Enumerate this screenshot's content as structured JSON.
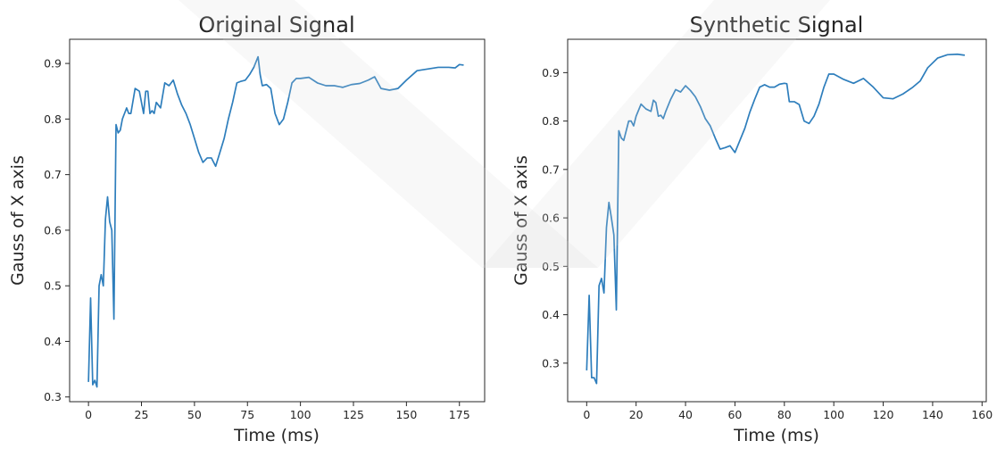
{
  "chart_data": [
    {
      "type": "line",
      "title": "Original Signal",
      "xlabel": "Time (ms)",
      "ylabel": "Gauss of X axis",
      "xlim": [
        -8.9,
        186.9
      ],
      "ylim": [
        0.2915,
        0.9435
      ],
      "xticks": [
        0,
        25,
        50,
        75,
        100,
        125,
        150,
        175
      ],
      "yticks": [
        0.3,
        0.4,
        0.5,
        0.6,
        0.7,
        0.8,
        0.9
      ],
      "grid": false,
      "line_color": "#2e7ebc",
      "series": [
        {
          "x": [
            0,
            1,
            2,
            3,
            4,
            5,
            6,
            7,
            8,
            9,
            10,
            11,
            12,
            13,
            14,
            15,
            16,
            17,
            18,
            19,
            20,
            22,
            24,
            26,
            27,
            28,
            29,
            30,
            31,
            32,
            34,
            36,
            38,
            40,
            42,
            44,
            46,
            48,
            50,
            52,
            54,
            56,
            58,
            60,
            62,
            64,
            66,
            68,
            70,
            72,
            74,
            76,
            78,
            80,
            81,
            82,
            84,
            86,
            88,
            90,
            92,
            94,
            96,
            98,
            100,
            104,
            108,
            112,
            116,
            120,
            124,
            128,
            132,
            135,
            138,
            142,
            146,
            150,
            155,
            160,
            165,
            170,
            173,
            175,
            177
          ],
          "y": [
            0.327,
            0.478,
            0.322,
            0.33,
            0.318,
            0.5,
            0.52,
            0.5,
            0.62,
            0.66,
            0.615,
            0.6,
            0.44,
            0.79,
            0.775,
            0.78,
            0.8,
            0.81,
            0.82,
            0.81,
            0.81,
            0.855,
            0.85,
            0.81,
            0.85,
            0.85,
            0.81,
            0.815,
            0.81,
            0.83,
            0.82,
            0.865,
            0.86,
            0.87,
            0.845,
            0.825,
            0.81,
            0.79,
            0.765,
            0.74,
            0.722,
            0.73,
            0.73,
            0.715,
            0.74,
            0.765,
            0.8,
            0.83,
            0.865,
            0.868,
            0.87,
            0.88,
            0.893,
            0.912,
            0.88,
            0.86,
            0.862,
            0.855,
            0.81,
            0.79,
            0.8,
            0.83,
            0.865,
            0.873,
            0.873,
            0.875,
            0.865,
            0.86,
            0.86,
            0.857,
            0.862,
            0.864,
            0.87,
            0.876,
            0.855,
            0.852,
            0.855,
            0.87,
            0.887,
            0.89,
            0.893,
            0.893,
            0.892,
            0.898,
            0.897
          ]
        }
      ]
    },
    {
      "type": "line",
      "title": "Synthetic Signal",
      "xlabel": "Time (ms)",
      "ylabel": "Gauss of X axis",
      "xlim": [
        -7.7,
        161.7
      ],
      "ylim": [
        0.2204,
        0.9689
      ],
      "xticks": [
        0,
        20,
        40,
        60,
        80,
        100,
        120,
        140,
        160
      ],
      "yticks": [
        0.3,
        0.4,
        0.5,
        0.6,
        0.7,
        0.8,
        0.9
      ],
      "grid": false,
      "line_color": "#2e7ebc",
      "series": [
        {
          "x": [
            0,
            1,
            2,
            3,
            4,
            5,
            6,
            7,
            8,
            9,
            10,
            11,
            12,
            13,
            14,
            15,
            16,
            17,
            18,
            19,
            20,
            22,
            24,
            26,
            27,
            28,
            29,
            30,
            31,
            32,
            34,
            36,
            38,
            40,
            42,
            44,
            46,
            48,
            50,
            52,
            54,
            56,
            58,
            60,
            62,
            64,
            66,
            68,
            70,
            72,
            74,
            76,
            78,
            80,
            81,
            82,
            84,
            86,
            88,
            90,
            92,
            94,
            96,
            98,
            100,
            104,
            108,
            112,
            116,
            120,
            124,
            128,
            132,
            135,
            138,
            142,
            146,
            150,
            153
          ],
          "y": [
            0.285,
            0.44,
            0.27,
            0.27,
            0.258,
            0.46,
            0.475,
            0.445,
            0.58,
            0.632,
            0.6,
            0.565,
            0.41,
            0.78,
            0.765,
            0.76,
            0.78,
            0.8,
            0.8,
            0.79,
            0.81,
            0.835,
            0.825,
            0.82,
            0.843,
            0.838,
            0.81,
            0.812,
            0.805,
            0.82,
            0.845,
            0.865,
            0.86,
            0.873,
            0.863,
            0.85,
            0.83,
            0.805,
            0.79,
            0.765,
            0.742,
            0.745,
            0.749,
            0.735,
            0.76,
            0.785,
            0.818,
            0.845,
            0.87,
            0.875,
            0.87,
            0.87,
            0.876,
            0.878,
            0.877,
            0.84,
            0.84,
            0.834,
            0.8,
            0.795,
            0.81,
            0.835,
            0.87,
            0.897,
            0.897,
            0.886,
            0.878,
            0.888,
            0.87,
            0.848,
            0.846,
            0.856,
            0.87,
            0.883,
            0.91,
            0.93,
            0.937,
            0.938,
            0.936
          ]
        }
      ]
    }
  ]
}
